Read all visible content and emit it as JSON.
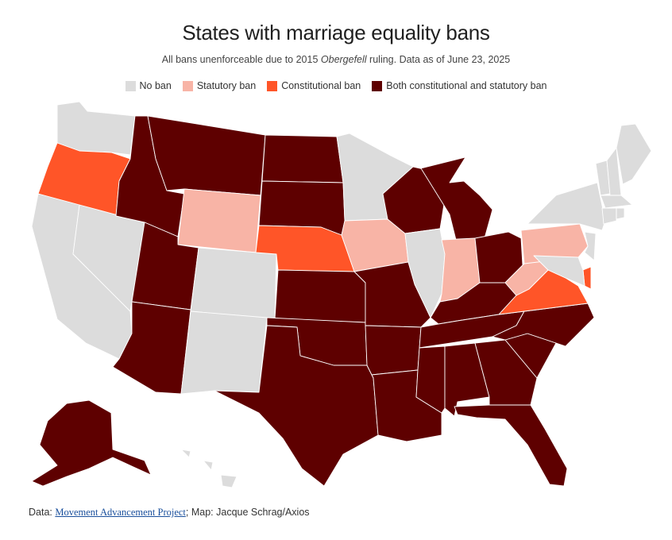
{
  "header": {
    "title": "States with marriage equality bans",
    "subtitle_prefix": "All bans unenforceable due to 2015 ",
    "subtitle_italic": "Obergefell",
    "subtitle_suffix": " ruling. Data as of June 23, 2025"
  },
  "legend": [
    {
      "key": "none",
      "label": "No ban",
      "color": "#dcdcdc"
    },
    {
      "key": "statutory",
      "label": "Statutory ban",
      "color": "#f8b4a6"
    },
    {
      "key": "constitutional",
      "label": "Constitutional ban",
      "color": "#ff5528"
    },
    {
      "key": "both",
      "label": "Both constitutional and statutory ban",
      "color": "#5e0000"
    }
  ],
  "states": {
    "WA": "none",
    "OR": "constitutional",
    "CA": "none",
    "NV": "none",
    "ID": "both",
    "MT": "both",
    "WY": "statutory",
    "UT": "both",
    "AZ": "both",
    "CO": "none",
    "NM": "none",
    "ND": "both",
    "SD": "both",
    "NE": "constitutional",
    "KS": "both",
    "OK": "both",
    "TX": "both",
    "MN": "none",
    "IA": "statutory",
    "MO": "both",
    "AR": "both",
    "LA": "both",
    "WI": "both",
    "IL": "none",
    "MI": "both",
    "IN": "statutory",
    "OH": "both",
    "KY": "both",
    "TN": "both",
    "MS": "both",
    "AL": "both",
    "GA": "both",
    "FL": "both",
    "SC": "both",
    "NC": "both",
    "VA": "constitutional",
    "WV": "statutory",
    "PA": "statutory",
    "NY": "none",
    "VT": "none",
    "NH": "none",
    "ME": "none",
    "MA": "none",
    "CT": "none",
    "RI": "none",
    "NJ": "none",
    "DE": "constitutional",
    "MD": "none",
    "AK": "both",
    "HI": "none"
  },
  "footer": {
    "source_prefix": "Data: ",
    "source_link": "Movement Advancement Project",
    "credit": "; Map: Jacque Schrag/Axios"
  }
}
